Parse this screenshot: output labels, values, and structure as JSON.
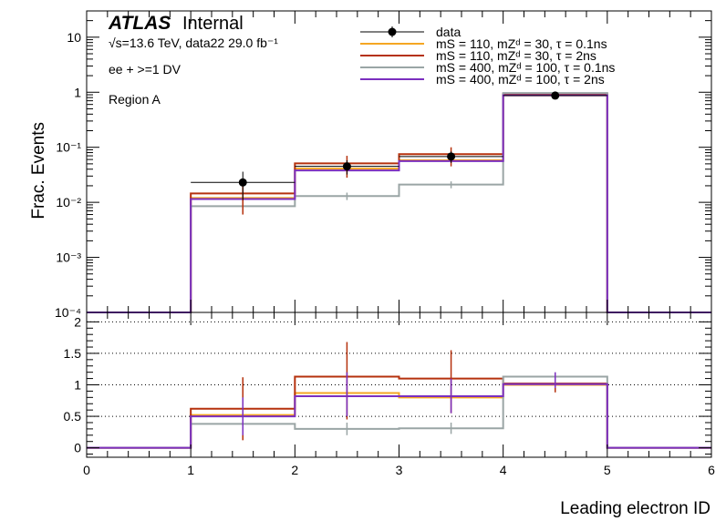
{
  "header": {
    "atlas": "ATLAS",
    "status": "Internal",
    "energy_line": "√s=13.6 TeV, data22 29.0 fb⁻¹",
    "selection": "ee + >=1 DV",
    "region": "Region A"
  },
  "legend": {
    "entries": [
      {
        "label": "data",
        "kind": "data"
      },
      {
        "label": "mS = 110, mZᵈ = 30, τ = 0.1ns",
        "color": "#f5a623"
      },
      {
        "label": "mS = 110, mZᵈ = 30, τ = 2ns",
        "color": "#b5310d"
      },
      {
        "label": "mS = 400, mZᵈ = 100, τ = 0.1ns",
        "color": "#9aa5a5"
      },
      {
        "label": "mS = 400, mZᵈ = 100, τ = 2ns",
        "color": "#7b2fbf"
      }
    ]
  },
  "chart_data": [
    {
      "type": "line",
      "panel": "main",
      "ylabel": "Frac. Events",
      "yscale": "log",
      "ylim": [
        0.0001,
        30
      ],
      "xlim": [
        0,
        6
      ],
      "yticks": [
        {
          "value": 10,
          "label": "10"
        },
        {
          "value": 1,
          "label": "1"
        },
        {
          "value": 0.1,
          "label": "10⁻¹"
        },
        {
          "value": 0.01,
          "label": "10⁻²"
        },
        {
          "value": 0.001,
          "label": "10⁻³"
        },
        {
          "value": 0.0001,
          "label": "10⁻⁴"
        }
      ],
      "bin_edges": [
        0,
        1,
        2,
        3,
        4,
        5,
        6
      ],
      "series": [
        {
          "name": "mS = 110, mZᵈ = 30, τ = 0.1ns",
          "color": "#f5a623",
          "values": [
            0,
            0.012,
            0.041,
            0.058,
            0.88,
            0
          ]
        },
        {
          "name": "mS = 110, mZᵈ = 30, τ = 2ns",
          "color": "#b5310d",
          "values": [
            0,
            0.0145,
            0.051,
            0.075,
            0.93,
            0
          ]
        },
        {
          "name": "mS = 400, mZᵈ = 100, τ = 0.1ns",
          "color": "#9aa5a5",
          "values": [
            0,
            0.0085,
            0.013,
            0.021,
            0.97,
            0
          ]
        },
        {
          "name": "mS = 400, mZᵈ = 100, τ = 2ns",
          "color": "#7b2fbf",
          "values": [
            0,
            0.0115,
            0.038,
            0.056,
            0.88,
            0
          ]
        }
      ],
      "data": {
        "name": "data",
        "x": [
          1.5,
          2.5,
          3.5,
          4.5
        ],
        "y": [
          0.023,
          0.045,
          0.068,
          0.87
        ],
        "ylow": [
          0.011,
          0.032,
          0.052,
          0.84
        ],
        "yhigh": [
          0.036,
          0.058,
          0.084,
          0.9
        ]
      },
      "series_errors": [
        {
          "x": 1.5,
          "low": 0.006,
          "high": 0.025,
          "color": "#b5310d"
        },
        {
          "x": 2.5,
          "low": 0.028,
          "high": 0.07,
          "color": "#b5310d"
        },
        {
          "x": 3.5,
          "low": 0.045,
          "high": 0.1,
          "color": "#b5310d"
        },
        {
          "x": 2.5,
          "low": 0.011,
          "high": 0.015,
          "color": "#9aa5a5"
        },
        {
          "x": 3.5,
          "low": 0.018,
          "high": 0.024,
          "color": "#9aa5a5"
        }
      ]
    },
    {
      "type": "line",
      "panel": "ratio",
      "xlabel": "Leading electron ID",
      "ylim": [
        -0.15,
        2.15
      ],
      "xlim": [
        0,
        6
      ],
      "xticks": [
        0,
        1,
        2,
        3,
        4,
        5,
        6
      ],
      "yticks": [
        0,
        0.5,
        1,
        1.5,
        2
      ],
      "gridlines_y": [
        0.5,
        1,
        1.5,
        2
      ],
      "bin_edges": [
        0,
        1,
        2,
        3,
        4,
        5,
        6
      ],
      "series": [
        {
          "name": "mS = 110, mZᵈ = 30, τ = 0.1ns",
          "color": "#f5a623",
          "values": [
            0,
            0.52,
            0.87,
            0.8,
            1.0,
            0
          ]
        },
        {
          "name": "mS = 110, mZᵈ = 30, τ = 2ns",
          "color": "#b5310d",
          "values": [
            0,
            0.62,
            1.13,
            1.1,
            1.02,
            0
          ]
        },
        {
          "name": "mS = 400, mZᵈ = 100, τ = 0.1ns",
          "color": "#9aa5a5",
          "values": [
            0,
            0.38,
            0.3,
            0.31,
            1.13,
            0
          ]
        },
        {
          "name": "mS = 400, mZᵈ = 100, τ = 2ns",
          "color": "#7b2fbf",
          "values": [
            0,
            0.5,
            0.82,
            0.82,
            1.01,
            0
          ]
        }
      ],
      "errors": [
        {
          "x": 1.5,
          "low": 0.12,
          "high": 1.12,
          "color": "#b5310d"
        },
        {
          "x": 2.5,
          "low": 0.45,
          "high": 1.68,
          "color": "#b5310d"
        },
        {
          "x": 3.5,
          "low": 0.55,
          "high": 1.55,
          "color": "#b5310d"
        },
        {
          "x": 4.5,
          "low": 0.88,
          "high": 1.18,
          "color": "#b5310d"
        },
        {
          "x": 1.5,
          "low": 0.3,
          "high": 0.46,
          "color": "#9aa5a5"
        },
        {
          "x": 2.5,
          "low": 0.2,
          "high": 0.4,
          "color": "#9aa5a5"
        },
        {
          "x": 3.5,
          "low": 0.22,
          "high": 0.4,
          "color": "#9aa5a5"
        },
        {
          "x": 1.5,
          "low": 0.2,
          "high": 0.8,
          "color": "#7b2fbf"
        },
        {
          "x": 2.5,
          "low": 0.5,
          "high": 1.2,
          "color": "#7b2fbf"
        },
        {
          "x": 3.5,
          "low": 0.55,
          "high": 1.1,
          "color": "#7b2fbf"
        },
        {
          "x": 4.5,
          "low": 0.95,
          "high": 1.2,
          "color": "#7b2fbf"
        }
      ]
    }
  ]
}
